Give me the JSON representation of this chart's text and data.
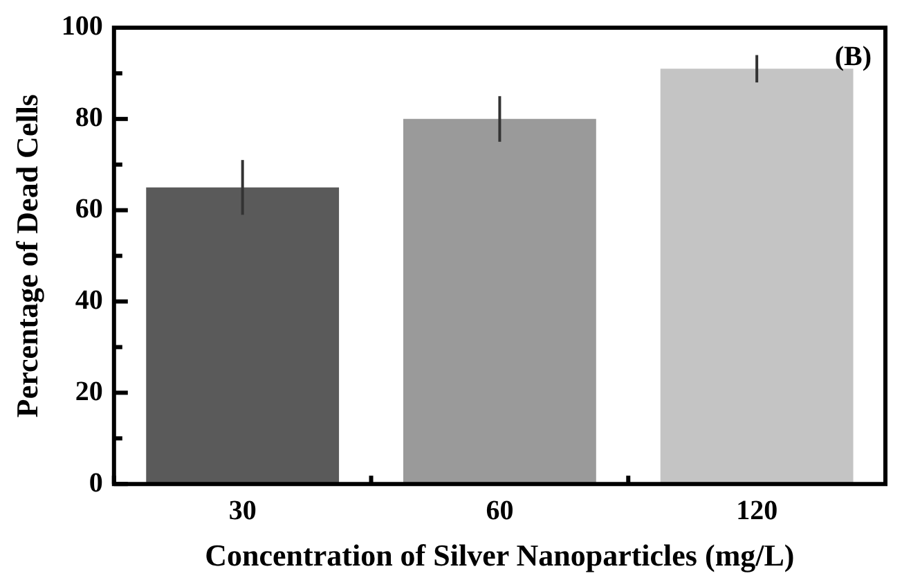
{
  "chart_data": {
    "type": "bar",
    "xlabel": "Concentration of Silver Nanoparticles (mg/L)",
    "ylabel": "Percentage of Dead Cells",
    "categories": [
      "30",
      "60",
      "120"
    ],
    "values": [
      65,
      80,
      91
    ],
    "errors": [
      6,
      5,
      3
    ],
    "colors": [
      "#5a5a5a",
      "#9a9a9a",
      "#c4c4c4"
    ],
    "ylim": [
      0,
      100
    ],
    "yticks": [
      0,
      {
        "value": 10,
        "label": null
      },
      20,
      {
        "value": 30,
        "label": null
      },
      40,
      {
        "value": 50,
        "label": null
      },
      60,
      {
        "value": 70,
        "label": null
      },
      80,
      {
        "value": 90,
        "label": null
      },
      100
    ],
    "annotations": [
      "(B)"
    ],
    "grid": false,
    "legend": false
  }
}
